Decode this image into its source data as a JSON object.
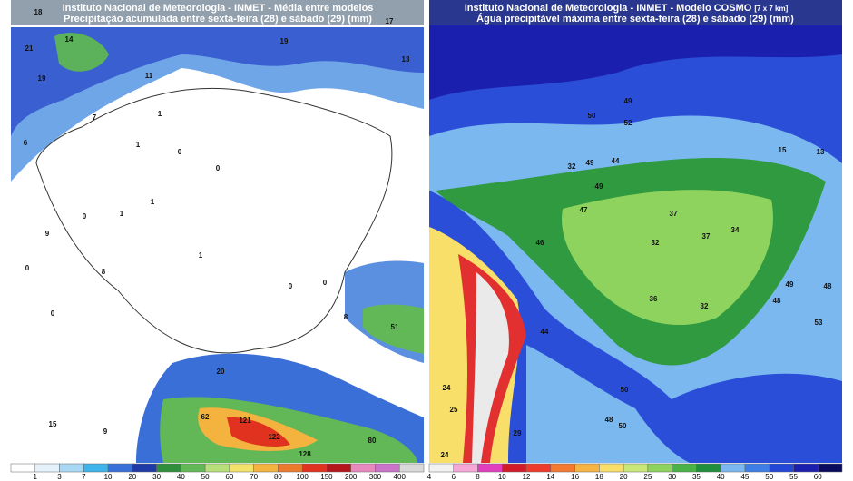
{
  "left_map": {
    "title_line1": "Instituto Nacional de Meteorologia - INMET - Média entre modelos",
    "title_line2": "Precipitação acumulada entre sexta-feira (28) e sábado (29) (mm)",
    "legend": {
      "labels": [
        1,
        3,
        7,
        10,
        20,
        30,
        40,
        50,
        60,
        70,
        80,
        100,
        150,
        200,
        300,
        400
      ],
      "colors": [
        "#ffffff",
        "#e6f2fb",
        "#a9d8f5",
        "#3fb4ea",
        "#3a6fd8",
        "#1f3aa6",
        "#2f8f3c",
        "#62b857",
        "#b7e07a",
        "#f3e36a",
        "#f3b33e",
        "#ec7a2c",
        "#e0321f",
        "#b5151c",
        "#e889bd",
        "#c974c9",
        "#d9d9d9"
      ]
    },
    "labels": [
      18,
      14,
      21,
      19,
      19,
      11,
      13,
      7,
      1,
      1,
      0,
      0,
      1,
      0,
      1,
      1,
      0,
      0,
      0,
      9,
      8,
      6,
      0,
      51,
      8,
      20,
      62,
      121,
      122,
      80,
      128,
      15,
      9,
      17
    ]
  },
  "right_map": {
    "title_line1": "Instituto Nacional de Meteorologia - INMET - Modelo COSMO",
    "title_note": "[7 x 7 km]",
    "title_line2": "Água precipitável máxima entre sexta-feira (28) e sábado (29) (mm)",
    "legend": {
      "labels": [
        4,
        6,
        8,
        10,
        12,
        14,
        16,
        18,
        20,
        25,
        30,
        35,
        40,
        45,
        50,
        55,
        60
      ],
      "colors": [
        "#f2f2f2",
        "#f5a8d8",
        "#e23fc0",
        "#d21b2a",
        "#ee3b2a",
        "#f37a30",
        "#f6b443",
        "#f7df6a",
        "#c9e779",
        "#8fd35f",
        "#48b246",
        "#1f8f3b",
        "#7bb8f0",
        "#3e7fe6",
        "#2247d6",
        "#1b1fae",
        "#0a0a5e"
      ]
    },
    "labels": [
      49,
      52,
      50,
      44,
      49,
      32,
      49,
      47,
      46,
      37,
      37,
      34,
      36,
      32,
      48,
      49,
      48,
      53,
      44,
      24,
      25,
      29,
      50,
      48,
      50,
      24,
      13,
      15,
      32
    ]
  }
}
